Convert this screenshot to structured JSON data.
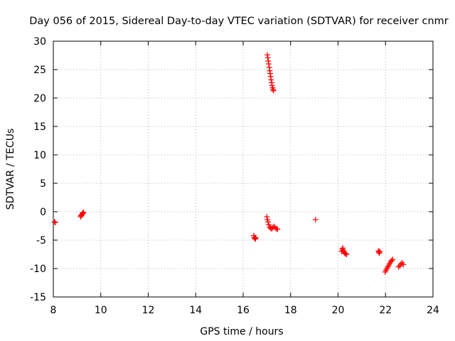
{
  "chart_data": {
    "type": "scatter",
    "title": "Day 056 of 2015, Sidereal Day-to-day VTEC variation (SDTVAR) for receiver cnmr",
    "xlabel": "GPS time / hours",
    "ylabel": "SDTVAR / TECUs",
    "xlim": [
      8,
      24
    ],
    "ylim": [
      -15,
      30
    ],
    "xticks": [
      "8",
      "10",
      "12",
      "14",
      "16",
      "18",
      "20",
      "22",
      "24"
    ],
    "yticks": [
      "-15",
      "-10",
      "-5",
      "0",
      "5",
      "10",
      "15",
      "20",
      "25",
      "30"
    ],
    "grid": true,
    "marker": "+",
    "color": "#ff0000",
    "series": [
      {
        "name": "SDTVAR",
        "points": [
          [
            8.05,
            -1.8
          ],
          [
            8.08,
            -1.9
          ],
          [
            9.15,
            -0.9
          ],
          [
            9.17,
            -0.7
          ],
          [
            9.19,
            -0.6
          ],
          [
            9.21,
            -0.5
          ],
          [
            9.23,
            -0.3
          ],
          [
            9.25,
            -0.2
          ],
          [
            9.27,
            -0.1
          ],
          [
            16.45,
            -4.2
          ],
          [
            16.47,
            -4.5
          ],
          [
            16.49,
            -4.7
          ],
          [
            16.51,
            -4.8
          ],
          [
            16.53,
            -4.6
          ],
          [
            17.0,
            -0.9
          ],
          [
            17.02,
            -1.4
          ],
          [
            17.05,
            -1.8
          ],
          [
            17.08,
            -2.3
          ],
          [
            17.12,
            -2.7
          ],
          [
            17.16,
            -2.9
          ],
          [
            17.2,
            -3.0
          ],
          [
            17.25,
            -2.8
          ],
          [
            17.3,
            -2.6
          ],
          [
            17.35,
            -2.8
          ],
          [
            17.4,
            -3.0
          ],
          [
            17.45,
            -3.1
          ],
          [
            17.02,
            27.6
          ],
          [
            17.04,
            27.1
          ],
          [
            17.06,
            26.5
          ],
          [
            17.08,
            26.0
          ],
          [
            17.1,
            25.4
          ],
          [
            17.12,
            24.8
          ],
          [
            17.14,
            24.3
          ],
          [
            17.16,
            23.8
          ],
          [
            17.18,
            23.2
          ],
          [
            17.2,
            22.7
          ],
          [
            17.22,
            22.2
          ],
          [
            17.24,
            21.8
          ],
          [
            17.26,
            21.5
          ],
          [
            17.28,
            21.3
          ],
          [
            19.05,
            -1.4
          ],
          [
            20.15,
            -7.0
          ],
          [
            20.18,
            -6.6
          ],
          [
            20.2,
            -6.4
          ],
          [
            20.22,
            -6.8
          ],
          [
            20.25,
            -7.1
          ],
          [
            20.28,
            -7.3
          ],
          [
            20.32,
            -7.4
          ],
          [
            20.36,
            -7.5
          ],
          [
            21.7,
            -6.9
          ],
          [
            21.72,
            -7.1
          ],
          [
            21.74,
            -7.3
          ],
          [
            21.76,
            -7.0
          ],
          [
            21.98,
            -10.6
          ],
          [
            22.02,
            -10.3
          ],
          [
            22.06,
            -10.0
          ],
          [
            22.1,
            -9.7
          ],
          [
            22.14,
            -9.4
          ],
          [
            22.18,
            -9.1
          ],
          [
            22.22,
            -8.8
          ],
          [
            22.26,
            -8.6
          ],
          [
            22.3,
            -8.4
          ],
          [
            22.55,
            -9.7
          ],
          [
            22.6,
            -9.5
          ],
          [
            22.65,
            -9.2
          ],
          [
            22.7,
            -9.0
          ],
          [
            22.75,
            -9.3
          ]
        ]
      }
    ]
  }
}
